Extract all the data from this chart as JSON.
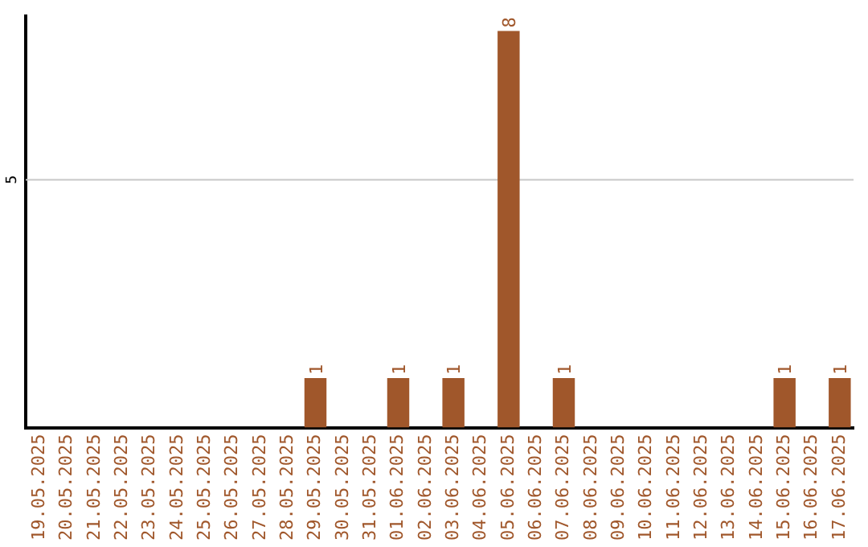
{
  "chart_data": {
    "type": "bar",
    "categories": [
      "19.05.2025",
      "20.05.2025",
      "21.05.2025",
      "22.05.2025",
      "23.05.2025",
      "24.05.2025",
      "25.05.2025",
      "26.05.2025",
      "27.05.2025",
      "28.05.2025",
      "29.05.2025",
      "30.05.2025",
      "31.05.2025",
      "01.06.2025",
      "02.06.2025",
      "03.06.2025",
      "04.06.2025",
      "05.06.2025",
      "06.06.2025",
      "07.06.2025",
      "08.06.2025",
      "09.06.2025",
      "10.06.2025",
      "11.06.2025",
      "12.06.2025",
      "13.06.2025",
      "14.06.2025",
      "15.06.2025",
      "16.06.2025",
      "17.06.2025"
    ],
    "values": [
      0,
      0,
      0,
      0,
      0,
      0,
      0,
      0,
      0,
      0,
      1,
      0,
      0,
      1,
      0,
      1,
      0,
      8,
      0,
      1,
      0,
      0,
      0,
      0,
      0,
      0,
      0,
      1,
      0,
      1
    ],
    "value_labels": [
      null,
      null,
      null,
      null,
      null,
      null,
      null,
      null,
      null,
      null,
      "1",
      null,
      null,
      "1",
      null,
      "1",
      null,
      "8",
      null,
      "1",
      null,
      null,
      null,
      null,
      null,
      null,
      null,
      "1",
      null,
      "1"
    ],
    "color": "#a0572b",
    "ylim": [
      0,
      8.3
    ],
    "ref_lines": [
      {
        "axis": "y",
        "value": 5,
        "label": "5",
        "color": "#c8c8c8"
      }
    ],
    "legend": false
  }
}
